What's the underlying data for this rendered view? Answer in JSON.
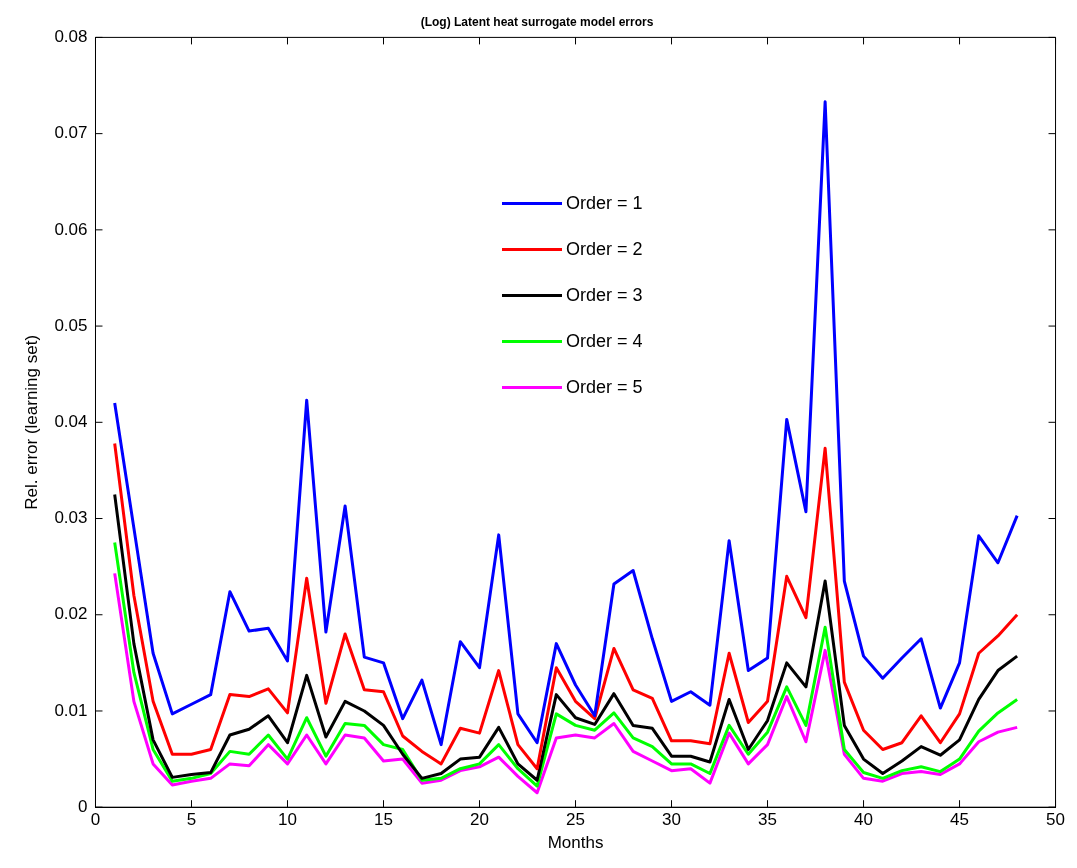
{
  "chart_data": {
    "type": "line",
    "title": "(Log) Latent heat surrogate model errors",
    "xlabel": "Months",
    "ylabel": "Rel. error (learning set)",
    "x": [
      1,
      2,
      3,
      4,
      5,
      6,
      7,
      8,
      9,
      10,
      11,
      12,
      13,
      14,
      15,
      16,
      17,
      18,
      19,
      20,
      21,
      22,
      23,
      24,
      25,
      26,
      27,
      28,
      29,
      30,
      31,
      32,
      33,
      34,
      35,
      36,
      37,
      38,
      39,
      40,
      41,
      42,
      43,
      44,
      45,
      46,
      47,
      48
    ],
    "xlim": [
      0,
      50
    ],
    "xticks": [
      0,
      5,
      10,
      15,
      20,
      25,
      30,
      35,
      40,
      45,
      50
    ],
    "ylim": [
      0,
      0.08
    ],
    "yticks": [
      0,
      0.01,
      0.02,
      0.03,
      0.04,
      0.05,
      0.06,
      0.07,
      0.08
    ],
    "grid": false,
    "legend": "top",
    "marker": "none",
    "line_style": "solid",
    "series": [
      {
        "name": "Order = 1",
        "color": "#0000ff",
        "values": [
          0.042,
          0.029,
          0.016,
          0.0097,
          0.0107,
          0.0117,
          0.0224,
          0.0183,
          0.0186,
          0.0152,
          0.0423,
          0.0182,
          0.0313,
          0.0156,
          0.015,
          0.0092,
          0.0132,
          0.0065,
          0.0172,
          0.0145,
          0.0283,
          0.0097,
          0.0067,
          0.017,
          0.0127,
          0.0095,
          0.0232,
          0.0246,
          0.0175,
          0.011,
          0.012,
          0.0106,
          0.0277,
          0.0142,
          0.0155,
          0.0403,
          0.0307,
          0.0733,
          0.0235,
          0.0157,
          0.0134,
          0.0155,
          0.0175,
          0.0103,
          0.015,
          0.0282,
          0.0254,
          0.0303
        ]
      },
      {
        "name": "Order = 2",
        "color": "#ff0000",
        "values": [
          0.0378,
          0.022,
          0.011,
          0.0055,
          0.0055,
          0.006,
          0.0117,
          0.0115,
          0.0123,
          0.0098,
          0.0238,
          0.0108,
          0.018,
          0.0122,
          0.012,
          0.0074,
          0.0058,
          0.0045,
          0.0082,
          0.0077,
          0.0142,
          0.0065,
          0.004,
          0.0145,
          0.011,
          0.0092,
          0.0165,
          0.0122,
          0.0113,
          0.0069,
          0.0069,
          0.0066,
          0.016,
          0.0088,
          0.011,
          0.024,
          0.0197,
          0.0373,
          0.013,
          0.008,
          0.006,
          0.0067,
          0.0095,
          0.0067,
          0.0097,
          0.016,
          0.0178,
          0.02
        ]
      },
      {
        "name": "Order = 3",
        "color": "#000000",
        "values": [
          0.0325,
          0.017,
          0.007,
          0.0031,
          0.0034,
          0.0036,
          0.0075,
          0.0081,
          0.0095,
          0.0067,
          0.0137,
          0.0073,
          0.011,
          0.01,
          0.0085,
          0.0055,
          0.003,
          0.0035,
          0.005,
          0.0052,
          0.0083,
          0.0045,
          0.0028,
          0.0117,
          0.0093,
          0.0086,
          0.0118,
          0.0085,
          0.0082,
          0.0053,
          0.0053,
          0.0047,
          0.0112,
          0.006,
          0.009,
          0.015,
          0.0125,
          0.0235,
          0.0085,
          0.005,
          0.0035,
          0.0048,
          0.0063,
          0.0054,
          0.007,
          0.0112,
          0.0142,
          0.0157
        ]
      },
      {
        "name": "Order = 4",
        "color": "#00ff00",
        "values": [
          0.0275,
          0.014,
          0.006,
          0.0027,
          0.003,
          0.0035,
          0.0058,
          0.0055,
          0.0075,
          0.005,
          0.0093,
          0.0053,
          0.0087,
          0.0085,
          0.0065,
          0.006,
          0.0028,
          0.003,
          0.004,
          0.0045,
          0.0065,
          0.004,
          0.0022,
          0.0097,
          0.0085,
          0.008,
          0.0098,
          0.0072,
          0.0063,
          0.0045,
          0.0045,
          0.0035,
          0.0085,
          0.0055,
          0.0078,
          0.0125,
          0.0085,
          0.0187,
          0.006,
          0.0036,
          0.003,
          0.0038,
          0.0042,
          0.0037,
          0.005,
          0.0079,
          0.0098,
          0.0112
        ]
      },
      {
        "name": "Order = 5",
        "color": "#ff00ff",
        "values": [
          0.0243,
          0.011,
          0.0045,
          0.0023,
          0.0027,
          0.003,
          0.0045,
          0.0043,
          0.0065,
          0.0045,
          0.0075,
          0.0045,
          0.0075,
          0.0072,
          0.0048,
          0.005,
          0.0025,
          0.0028,
          0.0038,
          0.0042,
          0.0052,
          0.0032,
          0.0015,
          0.0072,
          0.0075,
          0.0072,
          0.0087,
          0.0058,
          0.0048,
          0.0038,
          0.004,
          0.0025,
          0.0077,
          0.0045,
          0.0065,
          0.0115,
          0.0068,
          0.0163,
          0.0055,
          0.003,
          0.0027,
          0.0035,
          0.0037,
          0.0034,
          0.0045,
          0.0068,
          0.0078,
          0.0083
        ]
      }
    ]
  }
}
